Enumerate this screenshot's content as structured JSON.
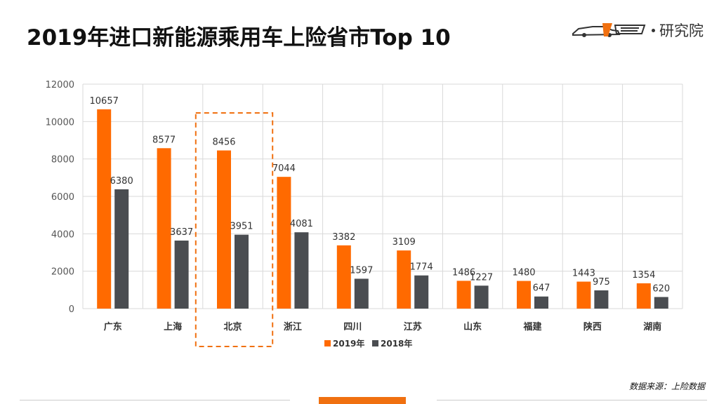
{
  "page": {
    "title": "2019年进口新能源乘用车上险省市Top 10",
    "logo_text": "研究院",
    "logo_icon": "car-brand-logo-icon",
    "source": "数据来源：上险数据"
  },
  "colors": {
    "series_2019": "#ff6a00",
    "series_2018": "#4a4d51",
    "highlight": "#f07010",
    "grid": "#d9d9d9",
    "accent_bar": "#f07010"
  },
  "chart_data": {
    "type": "bar",
    "title": "",
    "xlabel": "",
    "ylabel": "",
    "categories": [
      "广东",
      "上海",
      "北京",
      "浙江",
      "四川",
      "江苏",
      "山东",
      "福建",
      "陕西",
      "湖南"
    ],
    "series": [
      {
        "name": "2019年",
        "values": [
          10657,
          8577,
          8456,
          7044,
          3382,
          3109,
          1486,
          1480,
          1443,
          1354
        ]
      },
      {
        "name": "2018年",
        "values": [
          6380,
          3637,
          3951,
          4081,
          1597,
          1774,
          1227,
          647,
          975,
          620
        ]
      }
    ],
    "ylim": [
      0,
      12000
    ],
    "yticks": [
      0,
      2000,
      4000,
      6000,
      8000,
      10000,
      12000
    ],
    "grid": true,
    "legend": "bottom",
    "data_labels": true,
    "highlighted_category": "北京"
  }
}
